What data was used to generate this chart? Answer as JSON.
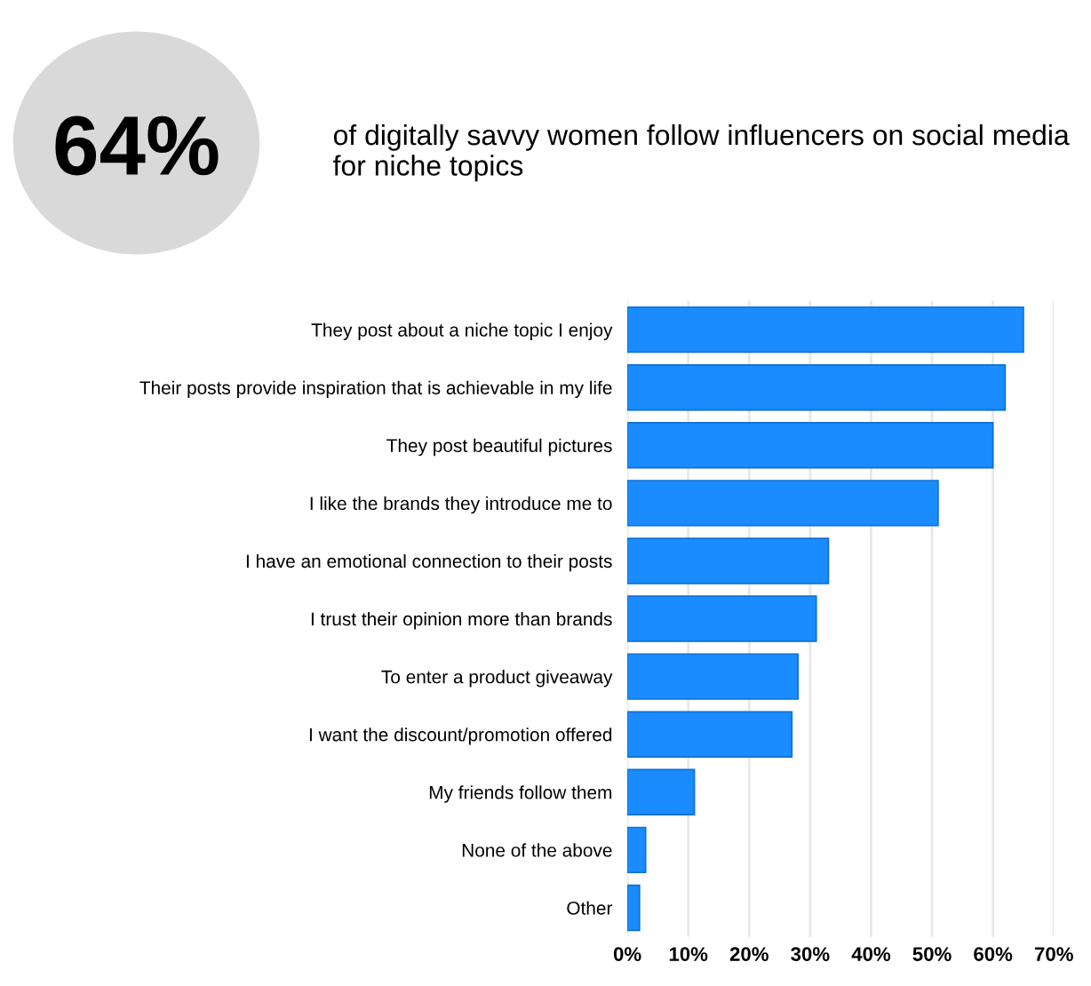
{
  "chart_data": {
    "type": "bar",
    "orientation": "horizontal",
    "title": "64%",
    "subtitle": "of digitally savvy women follow influencers on social media for niche topics",
    "categories": [
      "They post about a niche topic I enjoy",
      "Their posts provide inspiration that is achievable in my life",
      "They post beautiful pictures",
      "I like the brands they introduce me to",
      "I have an emotional connection to their posts",
      "I trust their opinion more than brands",
      "To enter a product giveaway",
      "I want the discount/promotion offered",
      "My friends follow them",
      "None of the above",
      "Other"
    ],
    "values": [
      65,
      62,
      60,
      51,
      33,
      31,
      28,
      27,
      11,
      3,
      2
    ],
    "color": "#1a8cff",
    "xlim": [
      0,
      70
    ],
    "xticks": [
      {
        "value": 0,
        "label": "0%"
      },
      {
        "value": 10,
        "label": "10%"
      },
      {
        "value": 20,
        "label": "20%"
      },
      {
        "value": 30,
        "label": "30%"
      },
      {
        "value": 40,
        "label": "40%"
      },
      {
        "value": 50,
        "label": "50%"
      },
      {
        "value": 60,
        "label": "60%"
      },
      {
        "value": 70,
        "label": "70%"
      }
    ],
    "grid": "x"
  }
}
